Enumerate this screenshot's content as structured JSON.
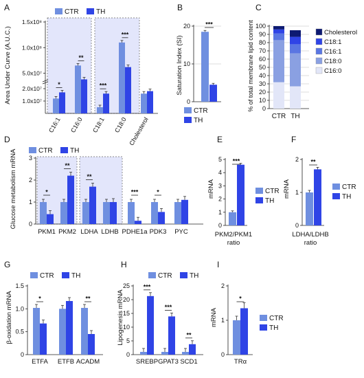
{
  "colors": {
    "ctr": "#6f8fe0",
    "th": "#2f44e6",
    "highlight": "#e3e6fb",
    "error": "#333333"
  },
  "chart_data": [
    {
      "panel": "A",
      "type": "bar",
      "broken_axis": true,
      "ylabel": "Area Under Curve (A.U.C.)",
      "legend": [
        "CTR",
        "TH"
      ],
      "yticks": [
        "1.0x10⁷",
        "2.0x10⁷",
        "5.0x10⁷",
        "1.0x10⁸",
        "1.5x10⁸"
      ],
      "categories": [
        "C16:1",
        "C16:0",
        "C18:1",
        "C18:0",
        "Cholesterol"
      ],
      "series": [
        {
          "name": "CTR",
          "values": [
            12000000,
            65000000,
            5000000,
            110000000,
            16000000
          ]
        },
        {
          "name": "TH",
          "values": [
            17000000,
            38000000,
            16000000,
            62000000,
            18000000
          ]
        }
      ],
      "significance": [
        "*",
        "**",
        "***",
        "***",
        ""
      ]
    },
    {
      "panel": "B",
      "type": "bar",
      "ylabel": "Saturation Index (SI)",
      "ylim": [
        0,
        20
      ],
      "yticks": [
        0,
        10,
        20
      ],
      "categories": [
        "CTR",
        "TH"
      ],
      "values": [
        18.5,
        4.5
      ],
      "legend": [
        "CTR",
        "TH"
      ],
      "significance": "***"
    },
    {
      "panel": "C",
      "type": "bar",
      "stacked": true,
      "ylabel": "% of total membrane lipid content",
      "ylim": [
        0,
        100
      ],
      "yticks": [
        0,
        10,
        20,
        30,
        40,
        50,
        60,
        70,
        80,
        90,
        100
      ],
      "categories": [
        "CTR",
        "TH"
      ],
      "series": [
        {
          "name": "C16:0",
          "values": [
            32,
            27
          ],
          "color": "#e2e6f8"
        },
        {
          "name": "C18:0",
          "values": [
            51,
            40
          ],
          "color": "#8aa0e2"
        },
        {
          "name": "C16:1",
          "values": [
            8,
            11
          ],
          "color": "#5a76e2"
        },
        {
          "name": "C18:1",
          "values": [
            5,
            9
          ],
          "color": "#2f44e6"
        },
        {
          "name": "Cholesterol",
          "values": [
            4,
            8
          ],
          "color": "#0d1a72"
        }
      ],
      "legend": [
        "Cholesterol",
        "C18:1",
        "C16:1",
        "C18:0",
        "C16:0"
      ]
    },
    {
      "panel": "D",
      "type": "bar",
      "ylabel": "Glucose metabolism mRNA",
      "ylim": [
        0,
        3
      ],
      "yticks": [
        0,
        1,
        2,
        3
      ],
      "legend": [
        "CTR",
        "TH"
      ],
      "categories": [
        "PKM1",
        "PKM2",
        "LDHA",
        "LDHB",
        "PDHE1a",
        "PDK3",
        "PYC"
      ],
      "series": [
        {
          "name": "CTR",
          "values": [
            1.0,
            1.0,
            1.0,
            1.0,
            1.0,
            1.0,
            1.0
          ]
        },
        {
          "name": "TH",
          "values": [
            0.45,
            2.2,
            1.7,
            1.0,
            0.15,
            0.55,
            1.1
          ]
        }
      ],
      "significance": [
        "*",
        "**",
        "**",
        "",
        "***",
        "*",
        ""
      ]
    },
    {
      "panel": "E",
      "type": "bar",
      "ylabel": "mRNA",
      "xlabel": "PKM2/PKM1 ratio",
      "ylim": [
        0,
        5
      ],
      "yticks": [
        0,
        1,
        2,
        3,
        4,
        5
      ],
      "legend": [
        "CTR",
        "TH"
      ],
      "values": [
        1.0,
        4.6
      ],
      "significance": "***"
    },
    {
      "panel": "F",
      "type": "bar",
      "ylabel": "mRNA",
      "xlabel": "LDHA/LDHB ratio",
      "ylim": [
        0,
        2
      ],
      "yticks": [
        0,
        1,
        2
      ],
      "legend": [
        "CTR",
        "TH"
      ],
      "values": [
        1.0,
        1.7
      ],
      "significance": "**"
    },
    {
      "panel": "G",
      "type": "bar",
      "ylabel": "β-oxidation mRNA",
      "ylim": [
        0,
        1.5
      ],
      "yticks": [
        0,
        0.5,
        1.0,
        1.5
      ],
      "legend": [
        "CTR",
        "TH"
      ],
      "categories": [
        "ETFA",
        "ETFB",
        "ACADM"
      ],
      "series": [
        {
          "name": "CTR",
          "values": [
            1.02,
            1.0,
            1.02
          ]
        },
        {
          "name": "TH",
          "values": [
            0.68,
            1.17,
            0.45
          ]
        }
      ],
      "significance": [
        "*",
        "",
        "**"
      ]
    },
    {
      "panel": "H",
      "type": "bar",
      "ylabel": "Lipogenesis mRNA",
      "ylim": [
        0,
        25
      ],
      "yticks": [
        0,
        5,
        10,
        15,
        20,
        25
      ],
      "legend": [
        "CTR",
        "TH"
      ],
      "categories": [
        "SREBP",
        "GPAT3",
        "SCD1"
      ],
      "series": [
        {
          "name": "CTR",
          "values": [
            1.0,
            1.0,
            1.0
          ]
        },
        {
          "name": "TH",
          "values": [
            21.3,
            13.9,
            3.8
          ]
        }
      ],
      "significance": [
        "***",
        "***",
        "**"
      ]
    },
    {
      "panel": "I",
      "type": "bar",
      "ylabel": "mRNA",
      "ylim": [
        0,
        2
      ],
      "yticks": [
        0,
        1,
        2
      ],
      "legend": [
        "CTR",
        "TH"
      ],
      "categories": [
        "TRα"
      ],
      "series": [
        {
          "name": "CTR",
          "values": [
            1.0
          ]
        },
        {
          "name": "TH",
          "values": [
            1.35
          ]
        }
      ],
      "significance": [
        "*"
      ]
    }
  ]
}
